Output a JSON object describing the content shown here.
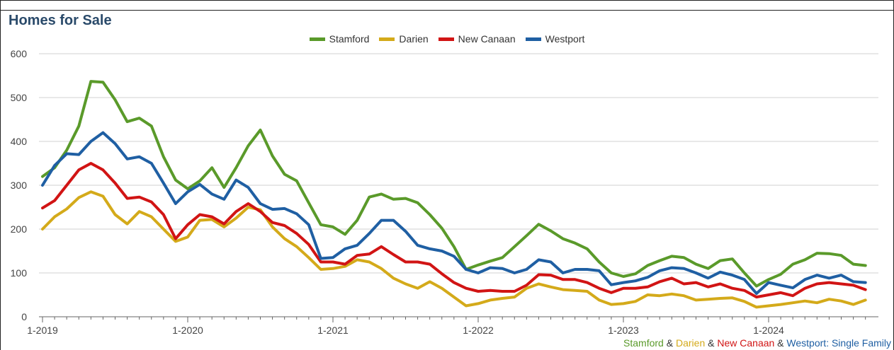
{
  "header": {
    "title": "Homes for Sale"
  },
  "footer": {
    "parts": [
      {
        "text": "Stamford",
        "color": "#5a9a2a"
      },
      {
        "text": " & ",
        "color": "#333333"
      },
      {
        "text": "Darien",
        "color": "#d4aa1a"
      },
      {
        "text": " & ",
        "color": "#333333"
      },
      {
        "text": "New Canaan",
        "color": "#d11414"
      },
      {
        "text": " & ",
        "color": "#333333"
      },
      {
        "text": "Westport",
        "color": "#1f5fa3"
      },
      {
        "text": ": Single Family",
        "color": "#1f5fa3"
      }
    ]
  },
  "chart_data": {
    "type": "line",
    "title": "Homes for Sale",
    "legend_position": "top",
    "grid": true,
    "ylim": [
      0,
      600
    ],
    "y_ticks": [
      "0",
      "100",
      "200",
      "300",
      "400",
      "500",
      "600"
    ],
    "x_tick_labels": [
      "1-2019",
      "1-2020",
      "1-2021",
      "1-2022",
      "1-2023",
      "1-2024"
    ],
    "x_start": "2019-01",
    "series": [
      {
        "name": "Stamford",
        "color": "#5a9a2a",
        "values": [
          320,
          340,
          380,
          435,
          537,
          535,
          495,
          445,
          453,
          435,
          365,
          312,
          292,
          310,
          340,
          295,
          340,
          390,
          426,
          367,
          325,
          310,
          260,
          210,
          205,
          188,
          220,
          273,
          280,
          268,
          270,
          260,
          233,
          202,
          160,
          108,
          118,
          127,
          135,
          160,
          185,
          211,
          196,
          178,
          168,
          155,
          125,
          100,
          92,
          98,
          117,
          128,
          138,
          135,
          120,
          110,
          128,
          132,
          100,
          70,
          85,
          97,
          120,
          130,
          145,
          144,
          140,
          120,
          117
        ]
      },
      {
        "name": "Darien",
        "color": "#d4aa1a",
        "values": [
          200,
          228,
          246,
          272,
          285,
          275,
          233,
          212,
          240,
          228,
          200,
          172,
          182,
          220,
          222,
          205,
          225,
          250,
          244,
          205,
          178,
          160,
          135,
          108,
          110,
          115,
          130,
          125,
          110,
          88,
          75,
          65,
          80,
          65,
          45,
          25,
          30,
          38,
          42,
          45,
          65,
          75,
          68,
          62,
          60,
          58,
          38,
          28,
          30,
          35,
          50,
          48,
          52,
          48,
          38,
          40,
          42,
          43,
          35,
          22,
          25,
          28,
          32,
          36,
          32,
          40,
          36,
          28,
          38
        ]
      },
      {
        "name": "New Canaan",
        "color": "#d11414",
        "values": [
          248,
          265,
          300,
          335,
          350,
          335,
          305,
          270,
          273,
          262,
          233,
          178,
          210,
          233,
          228,
          212,
          240,
          258,
          240,
          215,
          208,
          190,
          165,
          125,
          125,
          120,
          140,
          143,
          160,
          142,
          125,
          125,
          120,
          98,
          78,
          65,
          58,
          60,
          58,
          58,
          72,
          96,
          95,
          85,
          85,
          78,
          65,
          55,
          65,
          65,
          68,
          80,
          88,
          75,
          78,
          68,
          75,
          65,
          60,
          45,
          50,
          55,
          48,
          65,
          75,
          78,
          75,
          72,
          62
        ]
      },
      {
        "name": "Westport",
        "color": "#1f5fa3",
        "values": [
          300,
          345,
          372,
          370,
          400,
          420,
          395,
          360,
          365,
          350,
          305,
          258,
          285,
          302,
          280,
          268,
          312,
          295,
          258,
          245,
          247,
          235,
          210,
          133,
          135,
          155,
          163,
          190,
          220,
          220,
          195,
          163,
          155,
          150,
          138,
          108,
          100,
          112,
          110,
          100,
          108,
          130,
          125,
          100,
          108,
          108,
          105,
          73,
          78,
          82,
          90,
          105,
          112,
          110,
          100,
          88,
          102,
          95,
          85,
          53,
          78,
          72,
          66,
          85,
          95,
          88,
          95,
          80,
          78
        ]
      }
    ]
  }
}
